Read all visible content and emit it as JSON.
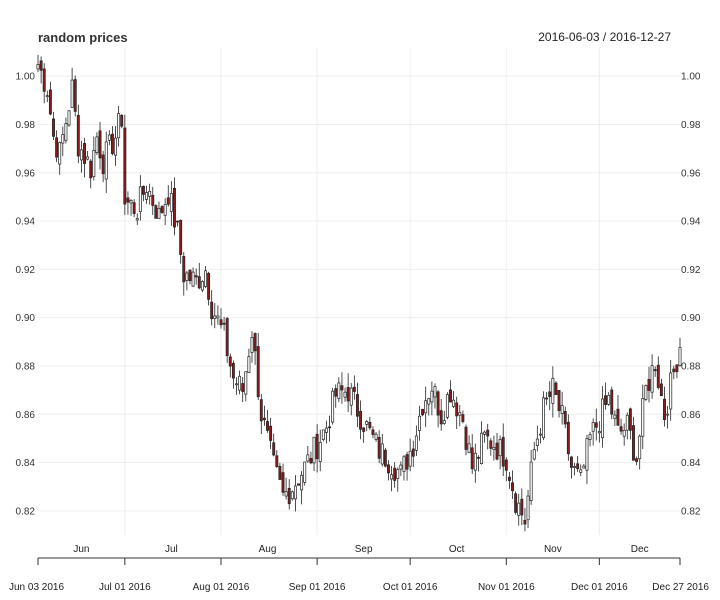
{
  "chart_data": {
    "type": "candlestick",
    "title": "random prices",
    "date_range": "2016-06-03 / 2016-12-27",
    "ylim": [
      0.81,
      1.01
    ],
    "y_ticks": [
      0.82,
      0.84,
      0.86,
      0.88,
      0.9,
      0.92,
      0.94,
      0.96,
      0.98,
      1.0
    ],
    "y_tick_labels": [
      "0.82",
      "0.84",
      "0.86",
      "0.88",
      "0.90",
      "0.92",
      "0.94",
      "0.96",
      "0.98",
      "1.00"
    ],
    "x_major_labels": [
      {
        "date": "2016-06-03",
        "label": "Jun 03 2016"
      },
      {
        "date": "2016-07-01",
        "label": "Jul 01 2016"
      },
      {
        "date": "2016-08-01",
        "label": "Aug 01 2016"
      },
      {
        "date": "2016-09-01",
        "label": "Sep 01 2016"
      },
      {
        "date": "2016-10-01",
        "label": "Oct 01 2016"
      },
      {
        "date": "2016-11-01",
        "label": "Nov 01 2016"
      },
      {
        "date": "2016-12-01",
        "label": "Dec 01 2016"
      },
      {
        "date": "2016-12-27",
        "label": "Dec 27 2016"
      }
    ],
    "x_minor_labels": [
      {
        "date": "2016-06-17",
        "label": "Jun"
      },
      {
        "date": "2016-07-16",
        "label": "Jul"
      },
      {
        "date": "2016-08-16",
        "label": "Aug"
      },
      {
        "date": "2016-09-16",
        "label": "Sep"
      },
      {
        "date": "2016-10-16",
        "label": "Oct"
      },
      {
        "date": "2016-11-16",
        "label": "Nov"
      },
      {
        "date": "2016-12-14",
        "label": "Dec"
      }
    ],
    "up_color": "#ffffff",
    "down_color": "#8b1a1a",
    "grid": true,
    "close_path": [
      [
        "2016-06-03",
        1.005
      ],
      [
        "2016-06-06",
        0.995
      ],
      [
        "2016-06-08",
        0.975
      ],
      [
        "2016-06-10",
        0.968
      ],
      [
        "2016-06-14",
        0.995
      ],
      [
        "2016-06-16",
        0.972
      ],
      [
        "2016-06-20",
        0.962
      ],
      [
        "2016-06-22",
        0.975
      ],
      [
        "2016-06-24",
        0.965
      ],
      [
        "2016-06-28",
        0.975
      ],
      [
        "2016-06-30",
        0.983
      ],
      [
        "2016-07-01",
        0.948
      ],
      [
        "2016-07-05",
        0.945
      ],
      [
        "2016-07-08",
        0.955
      ],
      [
        "2016-07-12",
        0.942
      ],
      [
        "2016-07-15",
        0.952
      ],
      [
        "2016-07-18",
        0.935
      ],
      [
        "2016-07-20",
        0.918
      ],
      [
        "2016-07-24",
        0.915
      ],
      [
        "2016-07-27",
        0.92
      ],
      [
        "2016-07-29",
        0.905
      ],
      [
        "2016-08-02",
        0.892
      ],
      [
        "2016-08-05",
        0.875
      ],
      [
        "2016-08-08",
        0.87
      ],
      [
        "2016-08-11",
        0.895
      ],
      [
        "2016-08-14",
        0.86
      ],
      [
        "2016-08-18",
        0.838
      ],
      [
        "2016-08-21",
        0.826
      ],
      [
        "2016-08-24",
        0.83
      ],
      [
        "2016-08-28",
        0.838
      ],
      [
        "2016-08-31",
        0.845
      ],
      [
        "2016-09-04",
        0.855
      ],
      [
        "2016-09-07",
        0.868
      ],
      [
        "2016-09-11",
        0.87
      ],
      [
        "2016-09-14",
        0.862
      ],
      [
        "2016-09-18",
        0.852
      ],
      [
        "2016-09-21",
        0.845
      ],
      [
        "2016-09-25",
        0.84
      ],
      [
        "2016-09-28",
        0.835
      ],
      [
        "2016-10-02",
        0.848
      ],
      [
        "2016-10-05",
        0.865
      ],
      [
        "2016-10-08",
        0.872
      ],
      [
        "2016-10-11",
        0.86
      ],
      [
        "2016-10-14",
        0.87
      ],
      [
        "2016-10-18",
        0.858
      ],
      [
        "2016-10-21",
        0.838
      ],
      [
        "2016-10-25",
        0.85
      ],
      [
        "2016-10-28",
        0.848
      ],
      [
        "2016-11-01",
        0.842
      ],
      [
        "2016-11-04",
        0.825
      ],
      [
        "2016-11-07",
        0.816
      ],
      [
        "2016-11-10",
        0.845
      ],
      [
        "2016-11-13",
        0.862
      ],
      [
        "2016-11-16",
        0.87
      ],
      [
        "2016-11-19",
        0.858
      ],
      [
        "2016-11-22",
        0.838
      ],
      [
        "2016-11-25",
        0.832
      ],
      [
        "2016-11-28",
        0.85
      ],
      [
        "2016-12-01",
        0.858
      ],
      [
        "2016-12-04",
        0.866
      ],
      [
        "2016-12-07",
        0.852
      ],
      [
        "2016-12-10",
        0.855
      ],
      [
        "2016-12-13",
        0.842
      ],
      [
        "2016-12-16",
        0.87
      ],
      [
        "2016-12-19",
        0.882
      ],
      [
        "2016-12-22",
        0.86
      ],
      [
        "2016-12-27",
        0.889
      ]
    ]
  }
}
